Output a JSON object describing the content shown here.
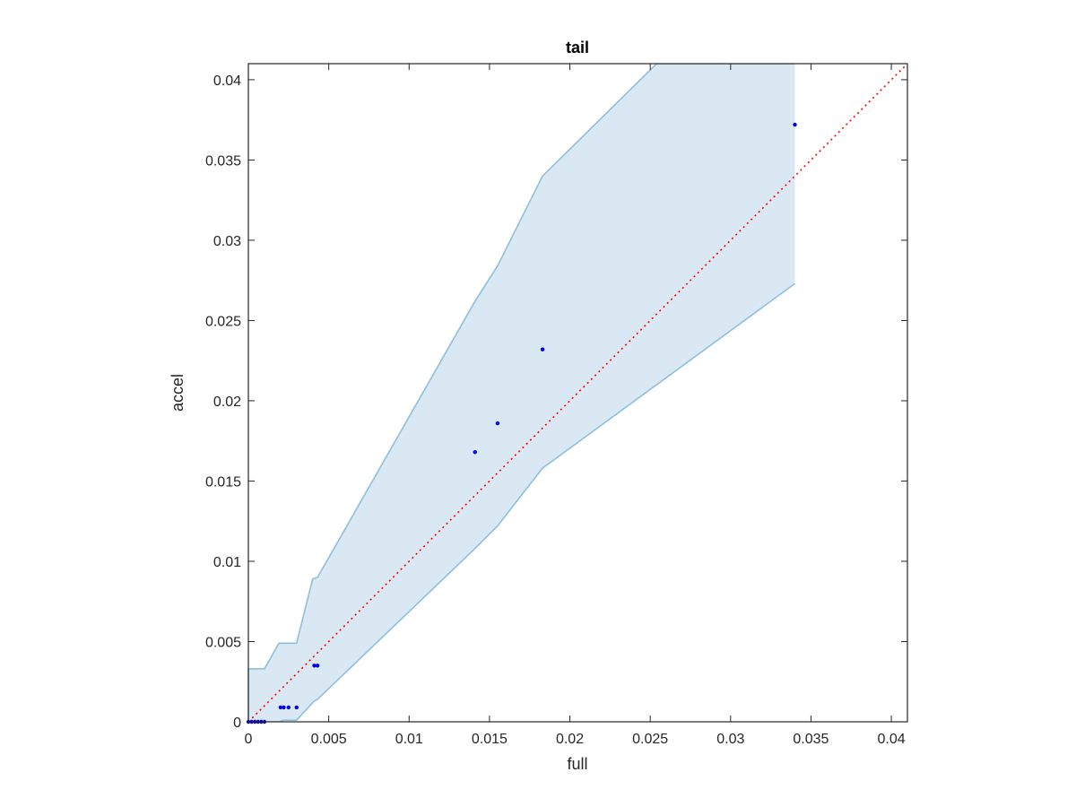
{
  "chart_data": {
    "type": "scatter",
    "title": "tail",
    "xlabel": "full",
    "ylabel": "accel",
    "xlim": [
      0,
      0.041
    ],
    "ylim": [
      0,
      0.041
    ],
    "grid": false,
    "legend": "none",
    "x_ticks": [
      {
        "value": 0,
        "label": "0"
      },
      {
        "value": 0.005,
        "label": "0.005"
      },
      {
        "value": 0.01,
        "label": "0.01"
      },
      {
        "value": 0.015,
        "label": "0.015"
      },
      {
        "value": 0.02,
        "label": "0.02"
      },
      {
        "value": 0.025,
        "label": "0.025"
      },
      {
        "value": 0.03,
        "label": "0.03"
      },
      {
        "value": 0.035,
        "label": "0.035"
      },
      {
        "value": 0.04,
        "label": "0.04"
      }
    ],
    "y_ticks": [
      {
        "value": 0,
        "label": "0"
      },
      {
        "value": 0.005,
        "label": "0.005"
      },
      {
        "value": 0.01,
        "label": "0.01"
      },
      {
        "value": 0.015,
        "label": "0.015"
      },
      {
        "value": 0.02,
        "label": "0.02"
      },
      {
        "value": 0.025,
        "label": "0.025"
      },
      {
        "value": 0.03,
        "label": "0.03"
      },
      {
        "value": 0.035,
        "label": "0.035"
      },
      {
        "value": 0.04,
        "label": "0.04"
      }
    ],
    "points": {
      "x": [
        0.0,
        0.0002,
        0.0004,
        0.0006,
        0.0008,
        0.001,
        0.002,
        0.0022,
        0.0025,
        0.003,
        0.0041,
        0.0043,
        0.0141,
        0.0155,
        0.0183,
        0.034
      ],
      "y": [
        0.0,
        0.0,
        0.0,
        0.0,
        0.0,
        0.0,
        0.0009,
        0.0009,
        0.0009,
        0.0009,
        0.0035,
        0.0035,
        0.0168,
        0.0186,
        0.0232,
        0.0372
      ],
      "color": "#0000ee"
    },
    "band": {
      "upper": [
        [
          0,
          0.0033
        ],
        [
          0.001,
          0.0033
        ],
        [
          0.0019,
          0.0049
        ],
        [
          0.003,
          0.0049
        ],
        [
          0.004,
          0.0089
        ],
        [
          0.0043,
          0.009
        ],
        [
          0.0141,
          0.0262
        ],
        [
          0.0155,
          0.0284
        ],
        [
          0.0183,
          0.034
        ],
        [
          0.0254,
          0.041
        ],
        [
          0.034,
          0.041
        ]
      ],
      "lower": [
        [
          0,
          0.0
        ],
        [
          0.0019,
          0.0
        ],
        [
          0.0022,
          0.0001
        ],
        [
          0.003,
          0.0001
        ],
        [
          0.0041,
          0.0013
        ],
        [
          0.0043,
          0.0014
        ],
        [
          0.0141,
          0.0108
        ],
        [
          0.0155,
          0.0122
        ],
        [
          0.0183,
          0.0158
        ],
        [
          0.034,
          0.0273
        ]
      ],
      "fill_color": "#d9e8f3",
      "line_color": "#8fbfdd"
    },
    "reference_line": {
      "from": [
        0,
        0
      ],
      "to": [
        0.041,
        0.041
      ],
      "color": "#ff0000",
      "style": "dotted"
    }
  }
}
